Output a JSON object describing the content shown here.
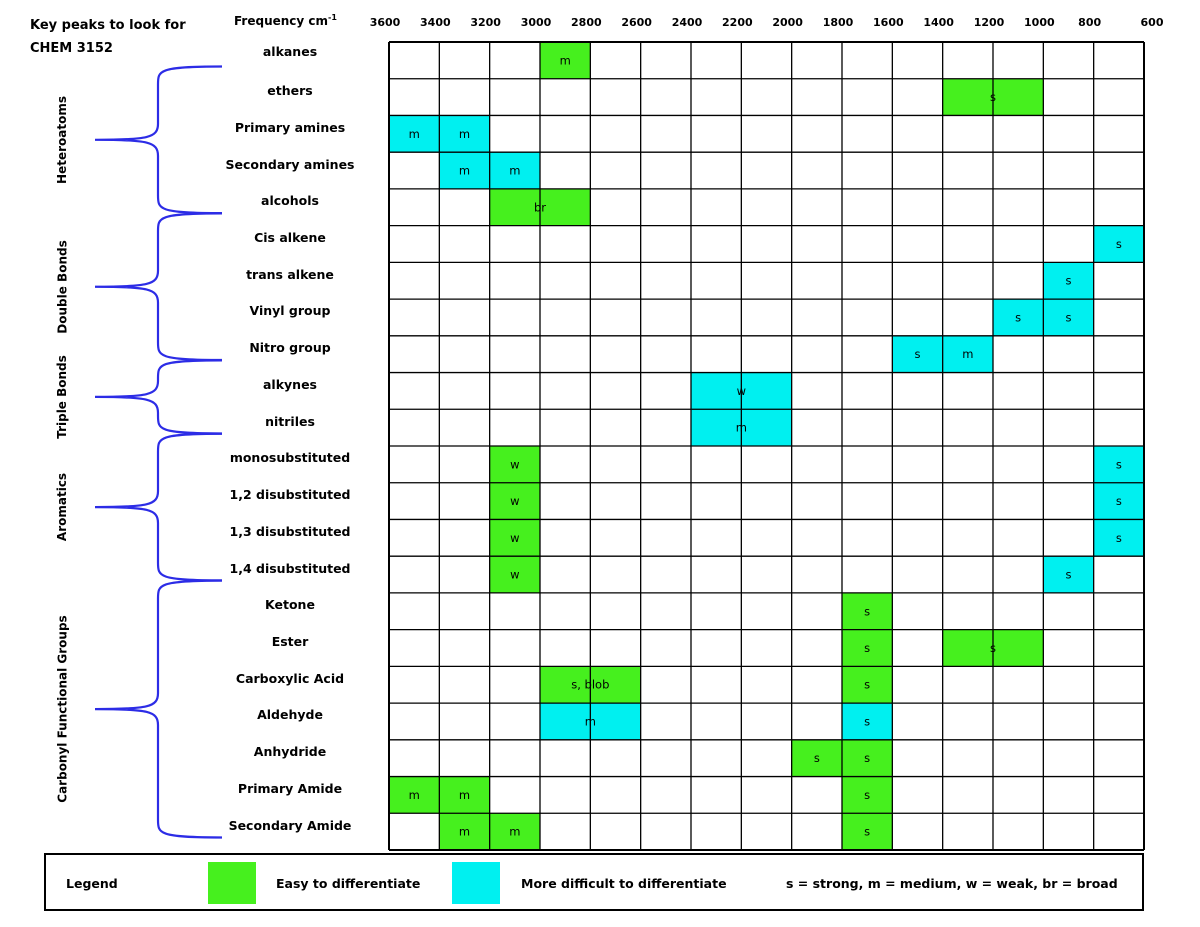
{
  "header": {
    "title_line1": "Key peaks to look for",
    "title_line2": "CHEM 3152",
    "freq_label": "Frequency cm",
    "freq_unit_sup": "-1"
  },
  "colors": {
    "easy": "#46f01e",
    "difficult": "#00f0f0",
    "bracket": "#2c2ce6",
    "grid": "#000000"
  },
  "chart_data": {
    "type": "table",
    "x_ticks": [
      "3600",
      "3400",
      "3200",
      "3000",
      "2800",
      "2600",
      "2400",
      "2200",
      "2000",
      "1800",
      "1600",
      "1400",
      "1200",
      "1000",
      "800",
      "600"
    ],
    "rows": [
      {
        "label": "alkanes",
        "cells": [
          {
            "from": 3000,
            "to": 2800,
            "text": "m",
            "color": "easy"
          }
        ]
      },
      {
        "label": "ethers",
        "cells": [
          {
            "from": 1400,
            "to": 1000,
            "text": "s",
            "color": "easy"
          }
        ]
      },
      {
        "label": "Primary amines",
        "cells": [
          {
            "from": 3600,
            "to": 3400,
            "text": "m",
            "color": "difficult"
          },
          {
            "from": 3400,
            "to": 3200,
            "text": "m",
            "color": "difficult"
          }
        ]
      },
      {
        "label": "Secondary amines",
        "cells": [
          {
            "from": 3400,
            "to": 3200,
            "text": "m",
            "color": "difficult"
          },
          {
            "from": 3200,
            "to": 3000,
            "text": "m",
            "color": "difficult"
          }
        ]
      },
      {
        "label": "alcohols",
        "cells": [
          {
            "from": 3200,
            "to": 2800,
            "text": "br",
            "color": "easy"
          }
        ]
      },
      {
        "label": "Cis alkene",
        "cells": [
          {
            "from": 800,
            "to": 600,
            "text": "s",
            "color": "difficult"
          }
        ]
      },
      {
        "label": "trans alkene",
        "cells": [
          {
            "from": 1000,
            "to": 800,
            "text": "s",
            "color": "difficult"
          }
        ]
      },
      {
        "label": "Vinyl group",
        "cells": [
          {
            "from": 1200,
            "to": 1000,
            "text": "s",
            "color": "difficult"
          },
          {
            "from": 1000,
            "to": 800,
            "text": "s",
            "color": "difficult"
          }
        ]
      },
      {
        "label": "Nitro group",
        "cells": [
          {
            "from": 1600,
            "to": 1400,
            "text": "s",
            "color": "difficult"
          },
          {
            "from": 1400,
            "to": 1200,
            "text": "m",
            "color": "difficult"
          }
        ]
      },
      {
        "label": "alkynes",
        "cells": [
          {
            "from": 2400,
            "to": 2000,
            "text": "w",
            "color": "difficult"
          }
        ]
      },
      {
        "label": "nitriles",
        "cells": [
          {
            "from": 2400,
            "to": 2000,
            "text": "m",
            "color": "difficult"
          }
        ]
      },
      {
        "label": "monosubstituted",
        "cells": [
          {
            "from": 3200,
            "to": 3000,
            "text": "w",
            "color": "easy"
          },
          {
            "from": 800,
            "to": 600,
            "text": "s",
            "color": "difficult"
          }
        ]
      },
      {
        "label": "1,2 disubstituted",
        "cells": [
          {
            "from": 3200,
            "to": 3000,
            "text": "w",
            "color": "easy"
          },
          {
            "from": 800,
            "to": 600,
            "text": "s",
            "color": "difficult"
          }
        ]
      },
      {
        "label": "1,3 disubstituted",
        "cells": [
          {
            "from": 3200,
            "to": 3000,
            "text": "w",
            "color": "easy"
          },
          {
            "from": 800,
            "to": 600,
            "text": "s",
            "color": "difficult"
          }
        ]
      },
      {
        "label": "1,4 disubstituted",
        "cells": [
          {
            "from": 3200,
            "to": 3000,
            "text": "w",
            "color": "easy"
          },
          {
            "from": 1000,
            "to": 800,
            "text": "s",
            "color": "difficult"
          }
        ]
      },
      {
        "label": "Ketone",
        "cells": [
          {
            "from": 1800,
            "to": 1600,
            "text": "s",
            "color": "easy"
          }
        ]
      },
      {
        "label": "Ester",
        "cells": [
          {
            "from": 1800,
            "to": 1600,
            "text": "s",
            "color": "easy"
          },
          {
            "from": 1400,
            "to": 1000,
            "text": "s",
            "color": "easy"
          }
        ]
      },
      {
        "label": "Carboxylic Acid",
        "cells": [
          {
            "from": 3000,
            "to": 2600,
            "text": "s, blob",
            "color": "easy"
          },
          {
            "from": 1800,
            "to": 1600,
            "text": "s",
            "color": "easy"
          }
        ]
      },
      {
        "label": "Aldehyde",
        "cells": [
          {
            "from": 3000,
            "to": 2600,
            "text": "m",
            "color": "difficult"
          },
          {
            "from": 1800,
            "to": 1600,
            "text": "s",
            "color": "difficult"
          }
        ]
      },
      {
        "label": "Anhydride",
        "cells": [
          {
            "from": 2000,
            "to": 1800,
            "text": "s",
            "color": "easy"
          },
          {
            "from": 1800,
            "to": 1600,
            "text": "s",
            "color": "easy"
          }
        ]
      },
      {
        "label": "Primary Amide",
        "cells": [
          {
            "from": 3600,
            "to": 3400,
            "text": "m",
            "color": "easy"
          },
          {
            "from": 3400,
            "to": 3200,
            "text": "m",
            "color": "easy"
          },
          {
            "from": 1800,
            "to": 1600,
            "text": "s",
            "color": "easy"
          }
        ]
      },
      {
        "label": "Secondary Amide",
        "cells": [
          {
            "from": 3400,
            "to": 3200,
            "text": "m",
            "color": "easy"
          },
          {
            "from": 3200,
            "to": 3000,
            "text": "m",
            "color": "easy"
          },
          {
            "from": 1800,
            "to": 1600,
            "text": "s",
            "color": "easy"
          }
        ]
      }
    ],
    "groups": [
      {
        "label": "Heteroatoms",
        "first_row": 1,
        "last_row": 4
      },
      {
        "label": "Double Bonds",
        "first_row": 5,
        "last_row": 8
      },
      {
        "label": "Triple Bonds",
        "first_row": 9,
        "last_row": 10
      },
      {
        "label": "Aromatics",
        "first_row": 11,
        "last_row": 14
      },
      {
        "label": "Carbonyl Functional Groups",
        "first_row": 15,
        "last_row": 21
      }
    ]
  },
  "legend": {
    "title": "Legend",
    "easy_label": "Easy to differentiate",
    "difficult_label": "More difficult to differentiate",
    "key": "s = strong, m = medium, w = weak, br = broad"
  }
}
